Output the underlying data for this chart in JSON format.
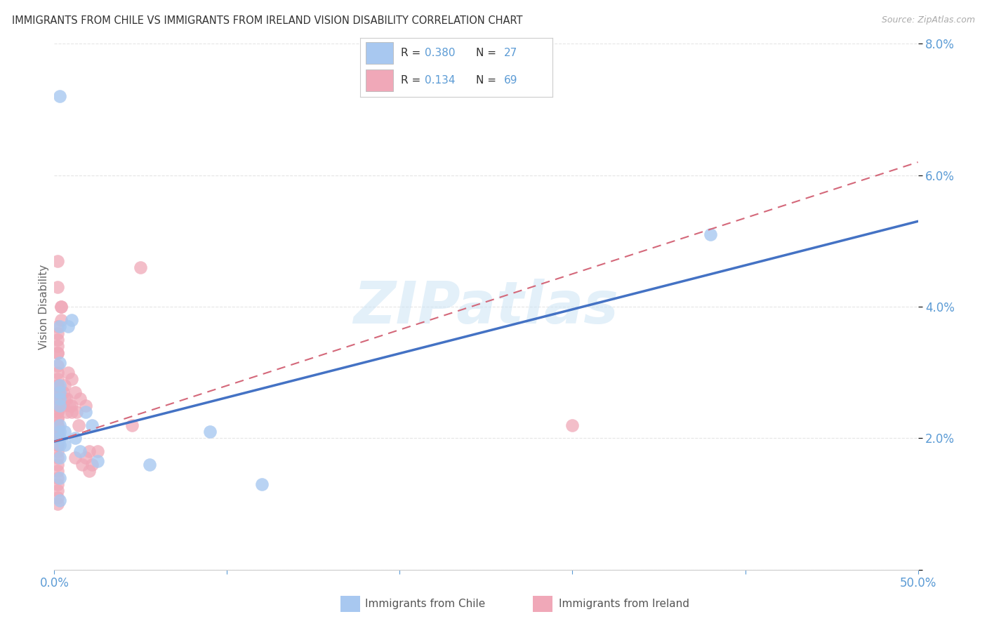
{
  "title": "IMMIGRANTS FROM CHILE VS IMMIGRANTS FROM IRELAND VISION DISABILITY CORRELATION CHART",
  "source": "Source: ZipAtlas.com",
  "ylabel": "Vision Disability",
  "xlim": [
    0.0,
    0.5
  ],
  "ylim": [
    0.0,
    0.08
  ],
  "xtick_positions": [
    0.0,
    0.1,
    0.2,
    0.3,
    0.4,
    0.5
  ],
  "xtick_labels_show": {
    "0.0": "0.0%",
    "0.5": "50.0%"
  },
  "yticks": [
    0.0,
    0.02,
    0.04,
    0.06,
    0.08
  ],
  "ytick_labels": [
    "",
    "2.0%",
    "4.0%",
    "6.0%",
    "8.0%"
  ],
  "chile_color": "#a8c8f0",
  "ireland_color": "#f0a8b8",
  "chile_R": 0.38,
  "chile_N": 27,
  "ireland_R": 0.134,
  "ireland_N": 69,
  "watermark_text": "ZIPatlas",
  "legend_label_chile": "Immigrants from Chile",
  "legend_label_ireland": "Immigrants from Ireland",
  "chile_x": [
    0.003,
    0.003,
    0.003,
    0.003,
    0.003,
    0.003,
    0.003,
    0.003,
    0.003,
    0.003,
    0.003,
    0.003,
    0.003,
    0.006,
    0.006,
    0.008,
    0.01,
    0.012,
    0.015,
    0.018,
    0.022,
    0.025,
    0.055,
    0.09,
    0.12,
    0.38,
    0.003
  ],
  "chile_y": [
    0.0105,
    0.014,
    0.017,
    0.019,
    0.02,
    0.021,
    0.022,
    0.025,
    0.026,
    0.027,
    0.028,
    0.0315,
    0.037,
    0.021,
    0.019,
    0.037,
    0.038,
    0.02,
    0.018,
    0.024,
    0.022,
    0.0165,
    0.016,
    0.021,
    0.013,
    0.051,
    0.072
  ],
  "ireland_x": [
    0.002,
    0.002,
    0.002,
    0.002,
    0.002,
    0.002,
    0.002,
    0.002,
    0.002,
    0.002,
    0.002,
    0.002,
    0.002,
    0.002,
    0.002,
    0.002,
    0.002,
    0.002,
    0.002,
    0.002,
    0.002,
    0.002,
    0.002,
    0.002,
    0.002,
    0.002,
    0.002,
    0.002,
    0.002,
    0.002,
    0.002,
    0.002,
    0.002,
    0.002,
    0.002,
    0.002,
    0.002,
    0.002,
    0.004,
    0.004,
    0.004,
    0.005,
    0.005,
    0.006,
    0.006,
    0.007,
    0.007,
    0.008,
    0.009,
    0.01,
    0.01,
    0.01,
    0.012,
    0.012,
    0.013,
    0.014,
    0.015,
    0.016,
    0.018,
    0.018,
    0.02,
    0.02,
    0.022,
    0.025,
    0.045,
    0.05,
    0.3,
    0.002,
    0.002
  ],
  "ireland_y": [
    0.01,
    0.011,
    0.012,
    0.013,
    0.014,
    0.015,
    0.016,
    0.017,
    0.018,
    0.019,
    0.019,
    0.02,
    0.02,
    0.021,
    0.021,
    0.022,
    0.022,
    0.023,
    0.023,
    0.024,
    0.024,
    0.025,
    0.025,
    0.026,
    0.026,
    0.027,
    0.027,
    0.028,
    0.028,
    0.029,
    0.03,
    0.031,
    0.033,
    0.033,
    0.034,
    0.035,
    0.036,
    0.037,
    0.038,
    0.04,
    0.04,
    0.027,
    0.025,
    0.028,
    0.026,
    0.026,
    0.024,
    0.03,
    0.025,
    0.029,
    0.025,
    0.024,
    0.027,
    0.017,
    0.024,
    0.022,
    0.026,
    0.016,
    0.025,
    0.017,
    0.015,
    0.018,
    0.016,
    0.018,
    0.022,
    0.046,
    0.022,
    0.047,
    0.043
  ],
  "bg_color": "#ffffff",
  "grid_color": "#e5e5e5",
  "title_color": "#333333",
  "tick_color": "#5b9bd5",
  "line_color_chile": "#4472c4",
  "line_color_ireland": "#d4687a",
  "chile_line_start_y": 0.0195,
  "chile_line_end_y": 0.053,
  "ireland_line_start_y": 0.0195,
  "ireland_line_end_y": 0.062
}
